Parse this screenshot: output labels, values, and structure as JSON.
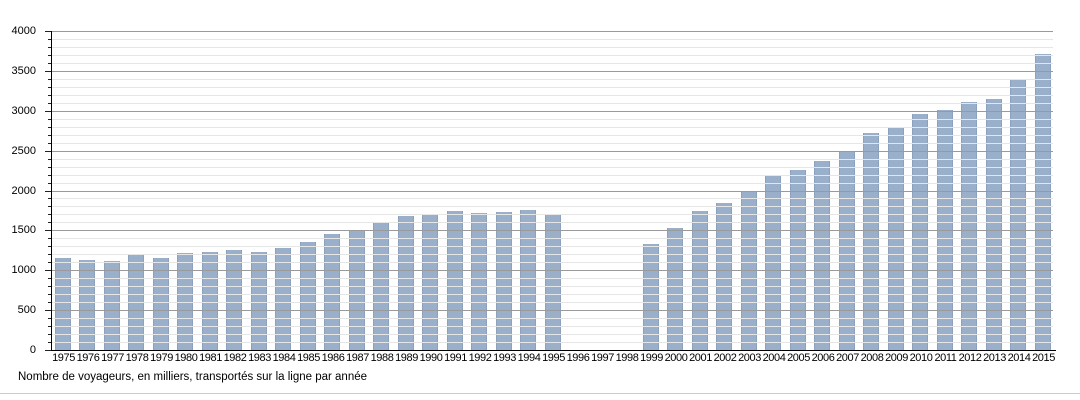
{
  "chart_data": {
    "type": "bar",
    "title": "",
    "caption": "Nombre de voyageurs, en milliers, transportés sur la ligne par année",
    "xlabel": "",
    "ylabel": "",
    "ylim": [
      0,
      4000
    ],
    "y_major_step": 500,
    "y_minor_step": 100,
    "y_tick_labels": [
      "0",
      "500",
      "1000",
      "1500",
      "2000",
      "2500",
      "3000",
      "3500",
      "4000"
    ],
    "grid": "horizontal, minor every 100, major every 500, drawn over bars",
    "legend": null,
    "categories": [
      "1975",
      "1976",
      "1977",
      "1978",
      "1979",
      "1980",
      "1981",
      "1982",
      "1983",
      "1984",
      "1985",
      "1986",
      "1987",
      "1988",
      "1989",
      "1990",
      "1991",
      "1992",
      "1993",
      "1994",
      "1995",
      "1996",
      "1997",
      "1998",
      "1999",
      "2000",
      "2001",
      "2002",
      "2003",
      "2004",
      "2005",
      "2006",
      "2007",
      "2008",
      "2009",
      "2010",
      "2011",
      "2012",
      "2013",
      "2014",
      "2015"
    ],
    "values": [
      1150,
      1130,
      1120,
      1205,
      1155,
      1220,
      1230,
      1255,
      1235,
      1280,
      1350,
      1455,
      1505,
      1595,
      1680,
      1695,
      1740,
      1715,
      1730,
      1760,
      1700,
      null,
      null,
      null,
      1330,
      1535,
      1745,
      1845,
      2000,
      2200,
      2260,
      2365,
      2500,
      2720,
      2785,
      2955,
      3010,
      3115,
      3145,
      3380,
      3710
    ],
    "missing_years": [
      "1996",
      "1997",
      "1998"
    ],
    "colors": {
      "bar_fill": "#9aafc9",
      "bar_edge": "#8ba1bd",
      "grid_major": "#9a9a9a",
      "grid_minor": "#e6e6e6",
      "axis": "#000000",
      "text": "#000000",
      "bottom_rule": "#cccccc"
    }
  }
}
